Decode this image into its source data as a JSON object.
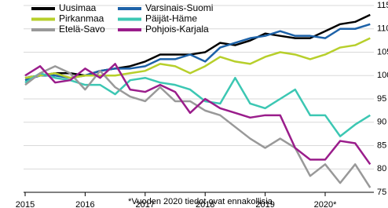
{
  "chart_data": {
    "type": "line",
    "categories": [
      "2015",
      null,
      null,
      null,
      "2016",
      null,
      null,
      null,
      "2017",
      null,
      null,
      null,
      "2018",
      null,
      null,
      null,
      "2019",
      null,
      null,
      null,
      "2020*",
      null,
      null,
      null
    ],
    "series": [
      {
        "name": "Uusimaa",
        "color": "#000000",
        "values": [
          99.5,
          100,
          100.5,
          100.5,
          100,
          101,
          101.5,
          102,
          103,
          104.5,
          104.5,
          104.5,
          105,
          107,
          106.5,
          107.5,
          109,
          108.5,
          108,
          108,
          109.5,
          111,
          111.5,
          113
        ]
      },
      {
        "name": "Varsinais-Suomi",
        "color": "#1d62a8",
        "values": [
          99,
          100,
          100,
          99.5,
          100,
          101,
          101.5,
          101.5,
          102,
          103.5,
          103.5,
          104.5,
          103,
          106,
          107,
          108,
          108.5,
          109.5,
          108.5,
          108.5,
          108,
          110,
          110,
          111
        ]
      },
      {
        "name": "Pirkanmaa",
        "color": "#b7cf2b",
        "values": [
          99.5,
          100,
          100.5,
          99.5,
          100,
          100,
          100,
          100.5,
          101,
          102.5,
          102,
          100.5,
          102,
          104,
          103,
          102.5,
          104,
          105,
          104.5,
          103.5,
          104.5,
          106,
          106.5,
          108
        ]
      },
      {
        "name": "Päijät-Häme",
        "color": "#3cc7b3",
        "values": [
          98.5,
          100.5,
          99.5,
          99,
          98,
          98,
          96,
          99,
          99.5,
          98.5,
          98,
          97,
          94.5,
          94,
          99.5,
          94,
          93,
          95,
          97,
          91.5,
          91.5,
          87,
          89.5,
          91.5
        ]
      },
      {
        "name": "Etelä-Savo",
        "color": "#999999",
        "values": [
          98,
          100.5,
          102,
          100.5,
          97,
          101,
          97.5,
          95.5,
          94.5,
          97.5,
          94.5,
          94.5,
          92.5,
          91.5,
          89,
          86.5,
          84.5,
          86.5,
          84.5,
          78.5,
          81,
          77,
          81,
          76
        ]
      },
      {
        "name": "Pohjois-Karjala",
        "color": "#9a1d8b",
        "values": [
          100,
          102,
          98.5,
          99,
          101.5,
          99.5,
          102.5,
          97,
          96.5,
          98,
          96.5,
          92,
          95,
          93,
          92,
          91,
          91.5,
          91.5,
          84.5,
          82,
          82,
          86,
          85.5,
          81
        ]
      }
    ],
    "ylim": [
      75,
      115
    ],
    "yticks": [
      75,
      80,
      85,
      90,
      95,
      100,
      105,
      110,
      115
    ],
    "grid": true,
    "legend_position": "upper left",
    "footnote": "*Vuoden 2020 tiedot ovat ennakollisia"
  }
}
